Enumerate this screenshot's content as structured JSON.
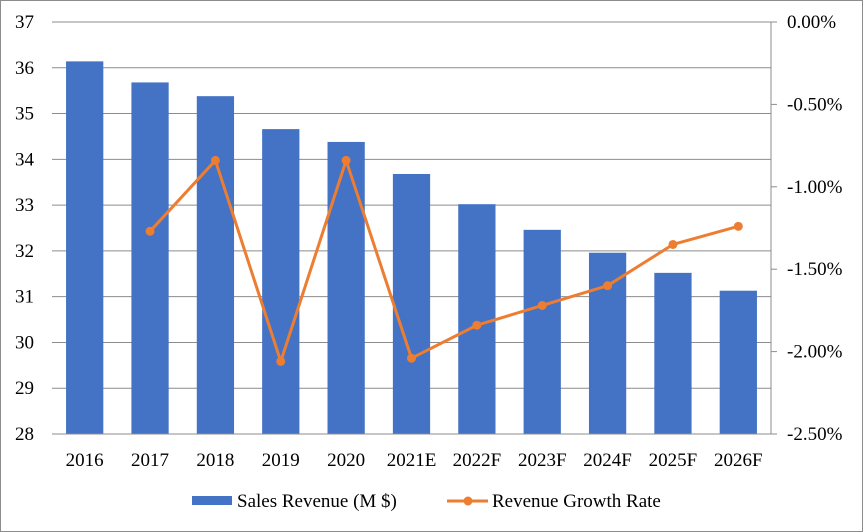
{
  "chart_data": {
    "type": "bar",
    "title": "",
    "xlabel": "",
    "ylabel": "",
    "y2label": "",
    "categories": [
      "2016",
      "2017",
      "2018",
      "2019",
      "2020",
      "2021E",
      "2022F",
      "2023F",
      "2024F",
      "2025F",
      "2026F"
    ],
    "series": [
      {
        "name": "Sales Revenue (M $)",
        "type": "bar",
        "axis": "left",
        "color": "#4472C4",
        "values": [
          36.14,
          35.68,
          35.38,
          34.66,
          34.38,
          33.68,
          33.02,
          32.46,
          31.96,
          31.52,
          31.13
        ]
      },
      {
        "name": "Revenue Growth Rate",
        "type": "line",
        "axis": "right",
        "color": "#ED7D31",
        "marker": "circle",
        "values": [
          null,
          -1.27,
          -0.84,
          -2.06,
          -0.84,
          -2.04,
          -1.84,
          -1.72,
          -1.6,
          -1.35,
          -1.24
        ]
      }
    ],
    "ylim": [
      28,
      37
    ],
    "yticks": [
      "28",
      "29",
      "30",
      "31",
      "32",
      "33",
      "34",
      "35",
      "36",
      "37"
    ],
    "y2lim": [
      -2.5,
      0
    ],
    "y2ticks": [
      "-2.50%",
      "-2.00%",
      "-1.50%",
      "-1.00%",
      "-0.50%",
      "0.00%"
    ],
    "grid": true,
    "legend": "bottom"
  }
}
